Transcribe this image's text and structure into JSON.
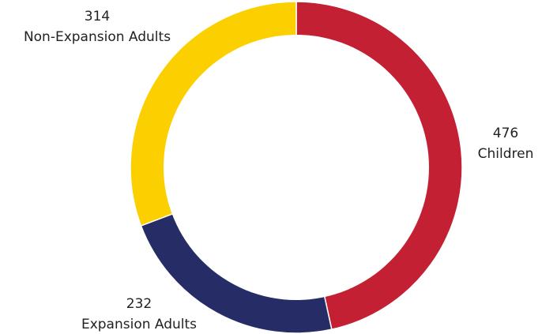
{
  "chart_data": {
    "type": "pie",
    "variant": "donut",
    "categories": [
      "Children",
      "Expansion Adults",
      "Non-Expansion Adults"
    ],
    "values": [
      476,
      232,
      314
    ],
    "colors": [
      "#c32033",
      "#252c66",
      "#fcd000"
    ],
    "data_labels": [
      {
        "value": "476",
        "name": "Children"
      },
      {
        "value": "232",
        "name": "Expansion Adults"
      },
      {
        "value": "314",
        "name": "Non-Expansion Adults"
      }
    ],
    "title": "",
    "legend": "none"
  }
}
